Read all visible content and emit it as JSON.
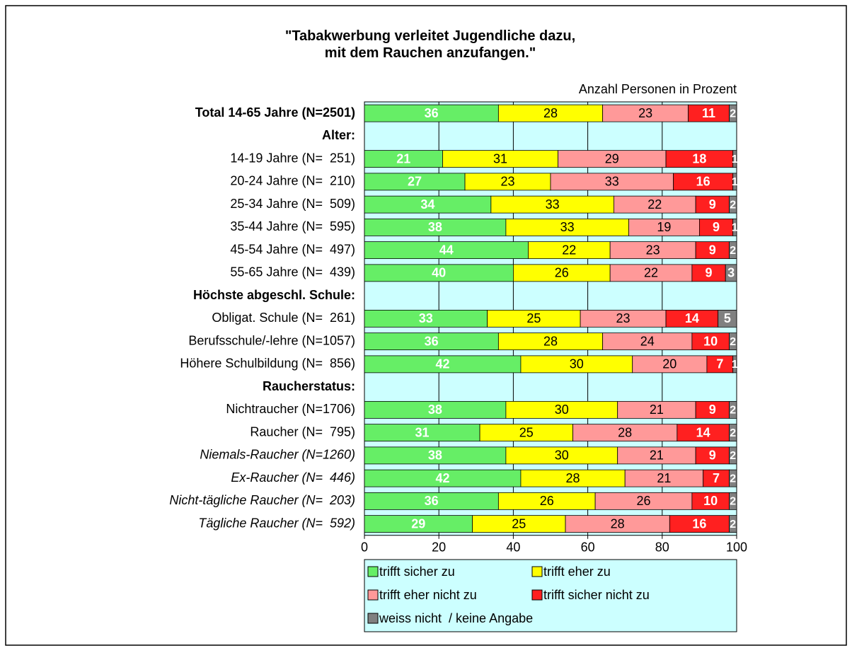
{
  "chart_data": {
    "type": "stacked_bar_horizontal",
    "title": "\"Tabakwerbung verleitet Jugendliche dazu,\nmit dem Rauchen anzufangen.\"",
    "subtitle": "Anzahl Personen in Prozent",
    "categories": [
      "Total 14-65 Jahre (N=2501)",
      "Alter:",
      "14-19 Jahre (N=  251)",
      "20-24 Jahre (N=  210)",
      "25-34 Jahre (N=  509)",
      "35-44 Jahre (N=  595)",
      "45-54 Jahre (N=  497)",
      "55-65 Jahre (N=  439)",
      "Höchste abgeschl. Schule:",
      "Obligat. Schule (N=  261)",
      "Berufsschule/-lehre (N=1057)",
      "Höhere Schulbildung (N=  856)",
      "Raucherstatus:",
      "Nichtraucher (N=1706)",
      "Raucher (N=  795)",
      "Niemals-Raucher (N=1260)",
      "Ex-Raucher (N=  446)",
      "Nicht-tägliche Raucher (N=  203)",
      "Tägliche Raucher (N=  592)"
    ],
    "series": [
      {
        "name": "trifft sicher zu",
        "color": "#66ee66",
        "label_color": "#ffffff",
        "values": [
          36,
          null,
          21,
          27,
          34,
          38,
          44,
          40,
          null,
          33,
          36,
          42,
          null,
          38,
          31,
          38,
          42,
          36,
          29
        ]
      },
      {
        "name": "trifft eher zu",
        "color": "#ffff00",
        "label_color": "#000000",
        "values": [
          28,
          null,
          31,
          23,
          33,
          33,
          22,
          26,
          null,
          25,
          28,
          30,
          null,
          30,
          25,
          30,
          28,
          26,
          25
        ]
      },
      {
        "name": "trifft eher nicht zu",
        "color": "#ff9999",
        "label_color": "#000000",
        "values": [
          23,
          null,
          29,
          33,
          22,
          19,
          23,
          22,
          null,
          23,
          24,
          20,
          null,
          21,
          28,
          21,
          21,
          26,
          28
        ]
      },
      {
        "name": "trifft sicher nicht zu",
        "color": "#ff2020",
        "label_color": "#ffffff",
        "values": [
          11,
          null,
          18,
          16,
          9,
          9,
          9,
          9,
          null,
          14,
          10,
          7,
          null,
          9,
          14,
          9,
          7,
          10,
          16
        ]
      },
      {
        "name": "weiss nicht  / keine Angabe",
        "color": "#808080",
        "label_color": "#ffffff",
        "values": [
          2,
          null,
          1,
          1,
          2,
          1,
          2,
          3,
          null,
          5,
          2,
          1,
          null,
          2,
          2,
          2,
          2,
          2,
          2
        ]
      }
    ],
    "xlim": [
      0,
      100
    ],
    "xticks": [
      0,
      20,
      40,
      60,
      80,
      100
    ],
    "grid": true,
    "background": "#ccffff"
  }
}
